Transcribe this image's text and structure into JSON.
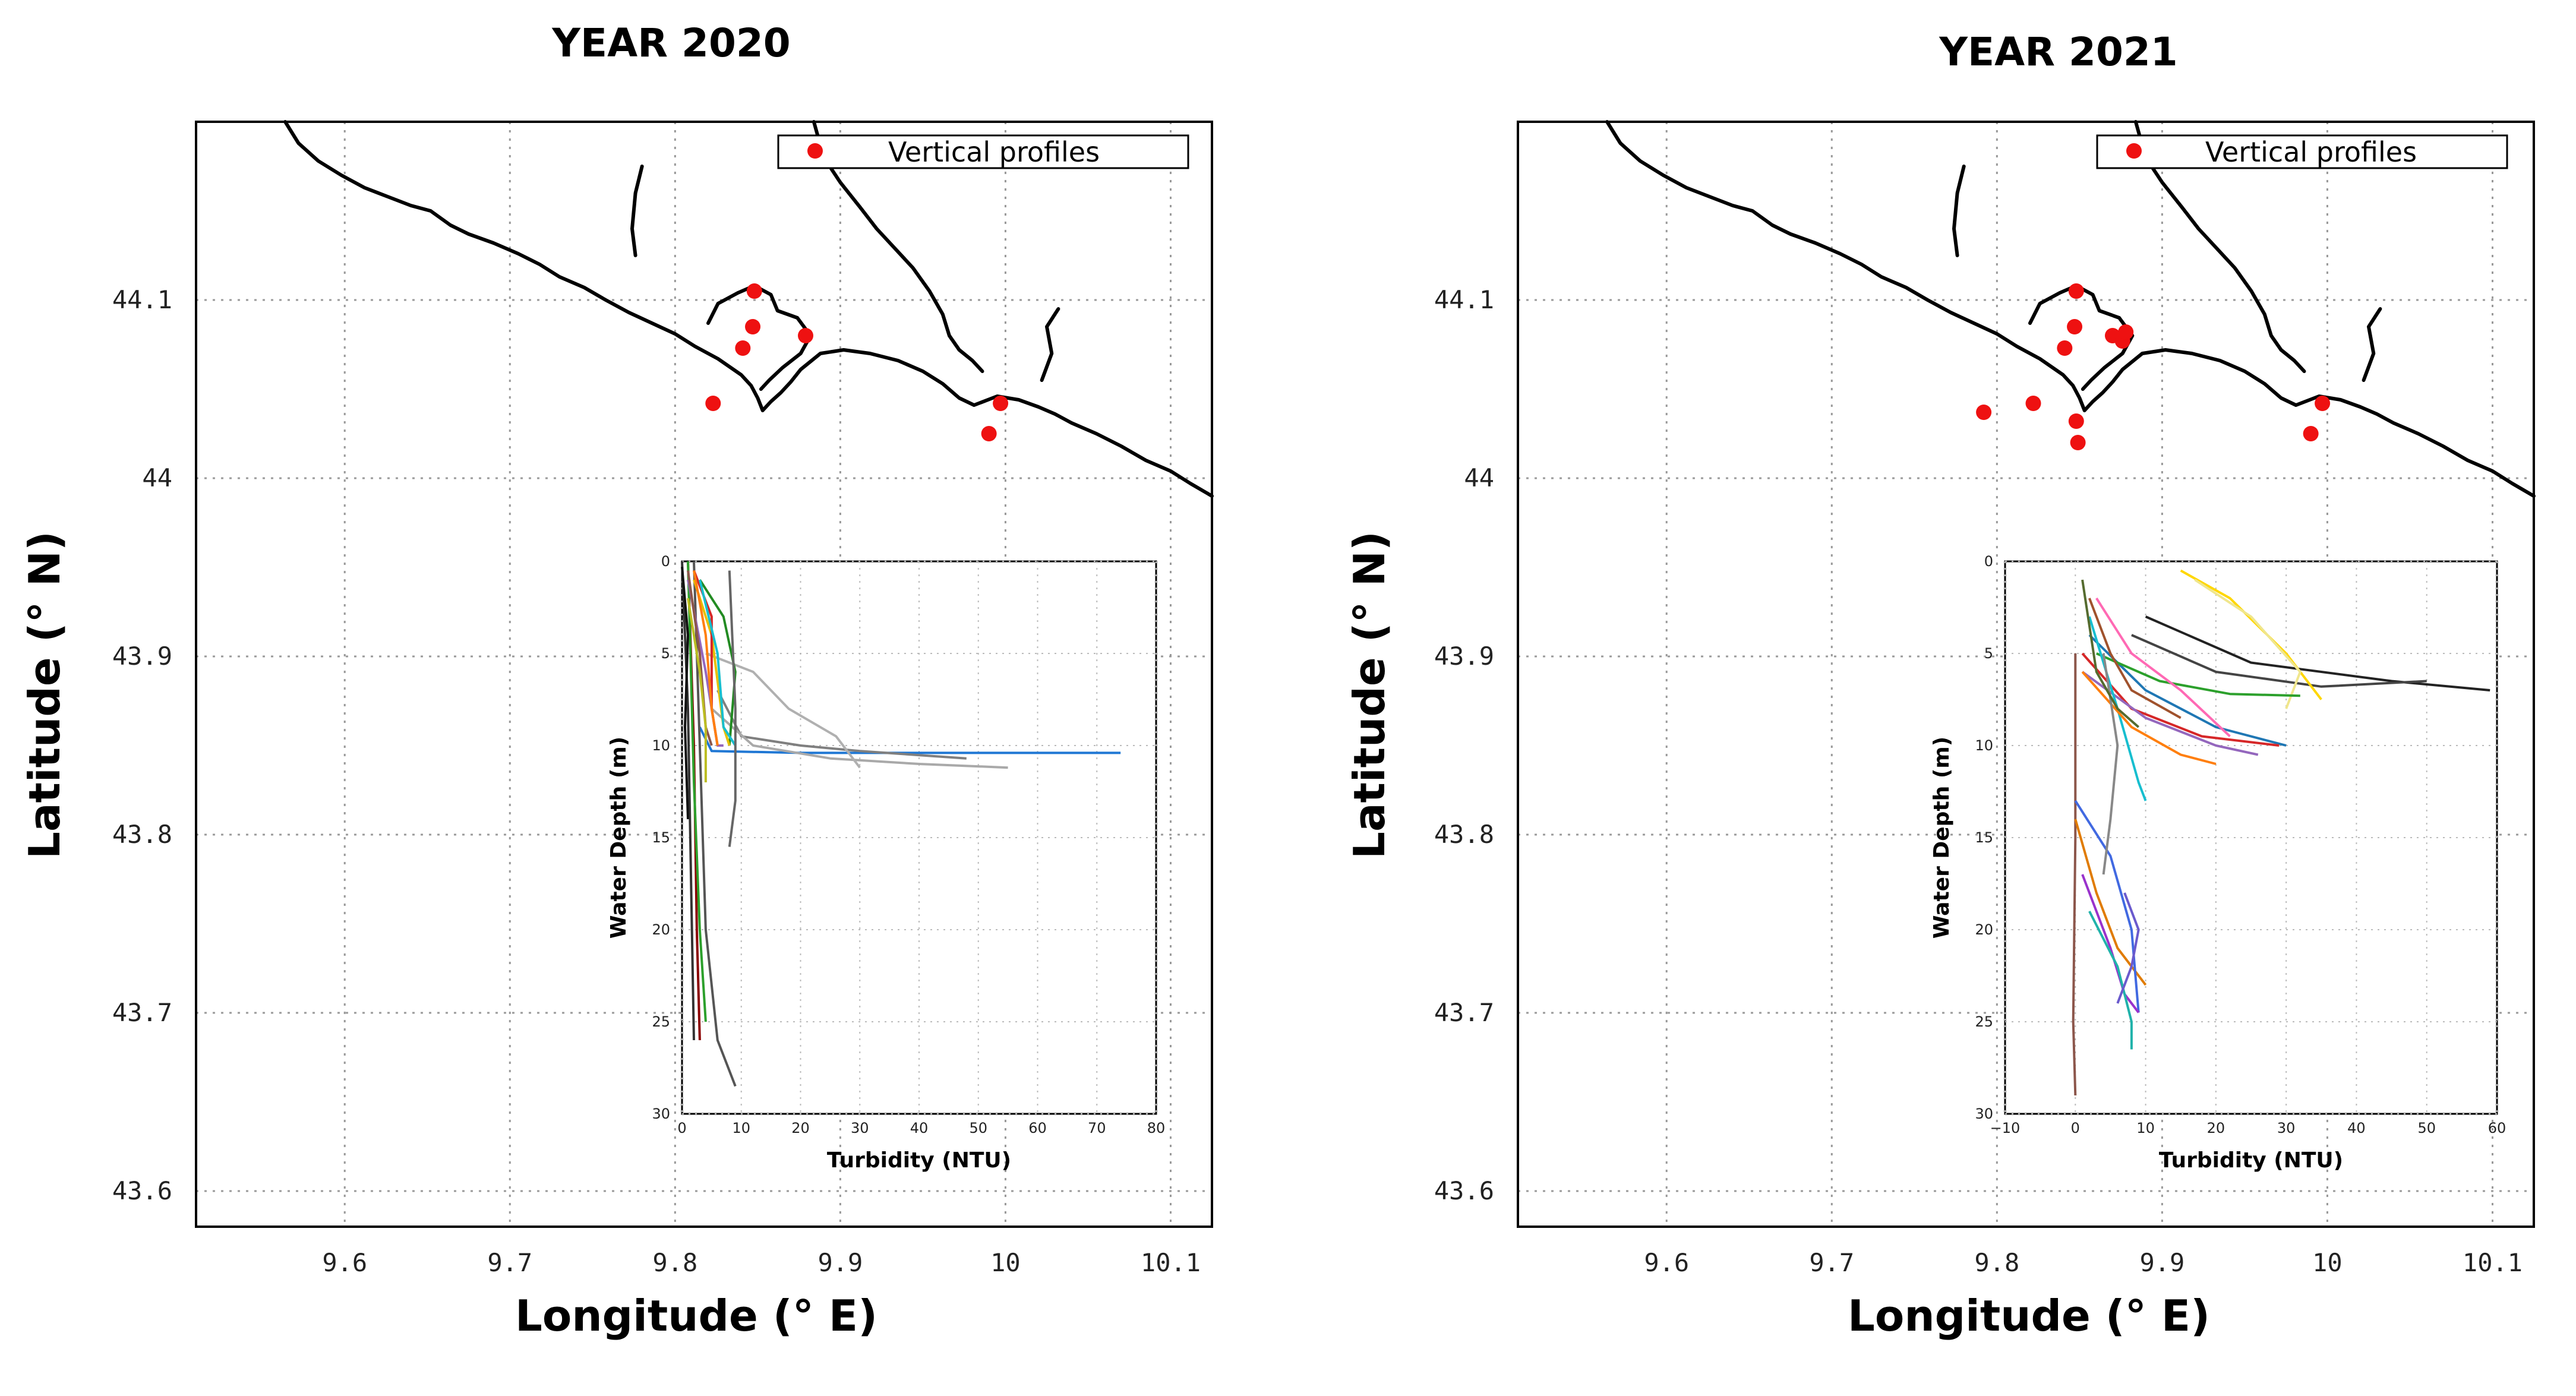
{
  "chart_data": [
    {
      "type": "scatter",
      "title": "YEAR 2020",
      "xlabel": "Longitude (° E)",
      "ylabel": "Latitude (° N)",
      "xlim": [
        9.51,
        10.125
      ],
      "ylim": [
        43.58,
        44.2
      ],
      "xticks": [
        "9.6",
        "9.7",
        "9.8",
        "9.9",
        "10",
        "10.1"
      ],
      "yticks": [
        "43.6",
        "43.7",
        "43.8",
        "43.9",
        "44",
        "44.1"
      ],
      "grid": true,
      "legend": {
        "label": "Vertical profiles",
        "position": "top-right"
      },
      "points": [
        {
          "x": 9.848,
          "y": 44.105
        },
        {
          "x": 9.847,
          "y": 44.085
        },
        {
          "x": 9.841,
          "y": 44.073
        },
        {
          "x": 9.879,
          "y": 44.08
        },
        {
          "x": 9.823,
          "y": 44.042
        },
        {
          "x": 9.997,
          "y": 44.042
        },
        {
          "x": 9.99,
          "y": 44.025
        }
      ],
      "inset": {
        "type": "line",
        "xlabel": "Turbidity (NTU)",
        "ylabel": "Water Depth (m)",
        "xlim": [
          0,
          80
        ],
        "ylim": [
          30,
          0
        ],
        "xticks": [
          "0",
          "10",
          "20",
          "30",
          "40",
          "50",
          "60",
          "70",
          "80"
        ],
        "yticks": [
          "0",
          "5",
          "10",
          "15",
          "20",
          "25",
          "30"
        ],
        "grid": true,
        "series": [
          {
            "color": "#1f77d4",
            "points": [
              [
                3,
                9
              ],
              [
                5,
                10.3
              ],
              [
                20,
                10.4
              ],
              [
                50,
                10.4
              ],
              [
                74,
                10.4
              ]
            ]
          },
          {
            "color": "#7f7f7f",
            "points": [
              [
                6,
                7
              ],
              [
                10,
                9.5
              ],
              [
                20,
                10
              ],
              [
                30,
                10.3
              ],
              [
                48,
                10.7
              ]
            ]
          },
          {
            "color": "#a9a9a9",
            "points": [
              [
                5,
                8
              ],
              [
                12,
                10
              ],
              [
                25,
                10.7
              ],
              [
                40,
                11
              ],
              [
                55,
                11.2
              ]
            ]
          },
          {
            "color": "#b0b0b0",
            "points": [
              [
                4,
                5
              ],
              [
                12,
                6
              ],
              [
                18,
                8
              ],
              [
                26,
                9.5
              ],
              [
                30,
                11.2
              ]
            ]
          },
          {
            "color": "#555555",
            "points": [
              [
                2,
                0
              ],
              [
                3,
                10
              ],
              [
                4,
                20
              ],
              [
                6,
                26
              ],
              [
                9,
                28.5
              ]
            ]
          },
          {
            "color": "#333333",
            "points": [
              [
                0,
                0
              ],
              [
                1,
                8
              ],
              [
                1.5,
                17
              ],
              [
                2,
                26
              ]
            ]
          },
          {
            "color": "#8b0000",
            "points": [
              [
                1,
                0
              ],
              [
                2,
                10
              ],
              [
                2.5,
                20
              ],
              [
                3,
                26
              ]
            ]
          },
          {
            "color": "#2ca02c",
            "points": [
              [
                1,
                0
              ],
              [
                2,
                12
              ],
              [
                3,
                20
              ],
              [
                4,
                25
              ]
            ]
          },
          {
            "color": "#228b22",
            "points": [
              [
                3,
                1
              ],
              [
                7,
                3
              ],
              [
                9,
                6
              ],
              [
                8,
                10
              ]
            ]
          },
          {
            "color": "#e6c000",
            "points": [
              [
                2,
                1
              ],
              [
                5,
                4
              ],
              [
                7,
                9
              ],
              [
                8,
                10
              ]
            ]
          },
          {
            "color": "#9467bd",
            "points": [
              [
                1,
                1
              ],
              [
                4,
                6
              ],
              [
                6,
                10
              ],
              [
                7,
                10
              ]
            ]
          },
          {
            "color": "#d62728",
            "points": [
              [
                2,
                0.5
              ],
              [
                5,
                3
              ],
              [
                5,
                8
              ],
              [
                6,
                10
              ]
            ]
          },
          {
            "color": "#17becf",
            "points": [
              [
                3,
                1
              ],
              [
                6,
                5
              ],
              [
                7,
                9
              ],
              [
                9,
                10
              ]
            ]
          },
          {
            "color": "#8c564b",
            "points": [
              [
                1,
                0.5
              ],
              [
                3,
                5
              ],
              [
                4,
                9
              ],
              [
                5,
                10
              ]
            ]
          },
          {
            "color": "#666666",
            "points": [
              [
                8,
                0.5
              ],
              [
                9,
                8
              ],
              [
                9,
                13
              ],
              [
                8,
                15.5
              ]
            ]
          },
          {
            "color": "#ff7f0e",
            "points": [
              [
                2,
                0.5
              ],
              [
                4,
                4
              ],
              [
                5,
                8
              ],
              [
                6,
                10
              ]
            ]
          },
          {
            "color": "#111111",
            "points": [
              [
                0,
                0.3
              ],
              [
                1,
                4
              ],
              [
                0.5,
                9
              ],
              [
                1,
                14
              ]
            ]
          },
          {
            "color": "#bcbd22",
            "points": [
              [
                1,
                2
              ],
              [
                3,
                6
              ],
              [
                4,
                9
              ],
              [
                4,
                12
              ]
            ]
          }
        ]
      }
    },
    {
      "type": "scatter",
      "title": "YEAR 2021",
      "xlabel": "Longitude (° E)",
      "ylabel": "Latitude (° N)",
      "xlim": [
        9.51,
        10.125
      ],
      "ylim": [
        43.58,
        44.2
      ],
      "xticks": [
        "9.6",
        "9.7",
        "9.8",
        "9.9",
        "10",
        "10.1"
      ],
      "yticks": [
        "43.6",
        "43.7",
        "43.8",
        "43.9",
        "44",
        "44.1"
      ],
      "grid": true,
      "legend": {
        "label": "Vertical profiles",
        "position": "top-right"
      },
      "points": [
        {
          "x": 9.848,
          "y": 44.105
        },
        {
          "x": 9.847,
          "y": 44.085
        },
        {
          "x": 9.841,
          "y": 44.073
        },
        {
          "x": 9.87,
          "y": 44.08
        },
        {
          "x": 9.876,
          "y": 44.077
        },
        {
          "x": 9.878,
          "y": 44.082
        },
        {
          "x": 9.792,
          "y": 44.037
        },
        {
          "x": 9.822,
          "y": 44.042
        },
        {
          "x": 9.848,
          "y": 44.032
        },
        {
          "x": 9.849,
          "y": 44.02
        },
        {
          "x": 9.997,
          "y": 44.042
        },
        {
          "x": 9.99,
          "y": 44.025
        }
      ],
      "inset": {
        "type": "line",
        "xlabel": "Turbidity (NTU)",
        "ylabel": "Water Depth (m)",
        "xlim": [
          -10,
          60
        ],
        "ylim": [
          30,
          0
        ],
        "xticks": [
          "−10",
          "0",
          "10",
          "20",
          "30",
          "40",
          "50",
          "60"
        ],
        "yticks": [
          "0",
          "5",
          "10",
          "15",
          "20",
          "25",
          "30"
        ],
        "grid": true,
        "series": [
          {
            "color": "#222222",
            "points": [
              [
                10,
                3
              ],
              [
                25,
                5.5
              ],
              [
                45,
                6.5
              ],
              [
                59,
                7
              ]
            ]
          },
          {
            "color": "#444444",
            "points": [
              [
                8,
                4
              ],
              [
                20,
                6
              ],
              [
                35,
                6.8
              ],
              [
                50,
                6.5
              ]
            ]
          },
          {
            "color": "#ffd700",
            "points": [
              [
                15,
                0.5
              ],
              [
                22,
                2
              ],
              [
                30,
                5
              ],
              [
                35,
                7.5
              ]
            ]
          },
          {
            "color": "#f0e68c",
            "points": [
              [
                17,
                1
              ],
              [
                25,
                3
              ],
              [
                32,
                6
              ],
              [
                30,
                8
              ]
            ]
          },
          {
            "color": "#1f77b4",
            "points": [
              [
                2,
                4
              ],
              [
                10,
                7
              ],
              [
                20,
                9
              ],
              [
                30,
                10
              ]
            ]
          },
          {
            "color": "#d62728",
            "points": [
              [
                1,
                5
              ],
              [
                8,
                8
              ],
              [
                18,
                9.5
              ],
              [
                29,
                10
              ]
            ]
          },
          {
            "color": "#9467bd",
            "points": [
              [
                1,
                6
              ],
              [
                10,
                8.5
              ],
              [
                20,
                10
              ],
              [
                26,
                10.5
              ]
            ]
          },
          {
            "color": "#2ca02c",
            "points": [
              [
                3,
                5
              ],
              [
                12,
                6.5
              ],
              [
                22,
                7.2
              ],
              [
                32,
                7.3
              ]
            ]
          },
          {
            "color": "#17becf",
            "points": [
              [
                2,
                3
              ],
              [
                6,
                8
              ],
              [
                9,
                12
              ],
              [
                10,
                13
              ]
            ]
          },
          {
            "color": "#ff7f0e",
            "points": [
              [
                1,
                6
              ],
              [
                8,
                9
              ],
              [
                15,
                10.5
              ],
              [
                20,
                11
              ]
            ]
          },
          {
            "color": "#8c564b",
            "points": [
              [
                0,
                5
              ],
              [
                0,
                15
              ],
              [
                -0.3,
                25
              ],
              [
                0,
                29
              ]
            ]
          },
          {
            "color": "#e07b00",
            "points": [
              [
                0,
                14
              ],
              [
                3,
                18
              ],
              [
                6,
                21
              ],
              [
                10,
                23
              ]
            ]
          },
          {
            "color": "#4169e1",
            "points": [
              [
                0,
                13
              ],
              [
                5,
                16
              ],
              [
                8,
                20
              ],
              [
                9,
                24.5
              ]
            ]
          },
          {
            "color": "#9932cc",
            "points": [
              [
                1,
                17
              ],
              [
                5,
                21
              ],
              [
                7,
                23.5
              ],
              [
                9,
                24.5
              ]
            ]
          },
          {
            "color": "#20b2aa",
            "points": [
              [
                2,
                19
              ],
              [
                6,
                22
              ],
              [
                8,
                25
              ],
              [
                8,
                26.5
              ]
            ]
          },
          {
            "color": "#888888",
            "points": [
              [
                4,
                5
              ],
              [
                6,
                10
              ],
              [
                5,
                14
              ],
              [
                4,
                17
              ]
            ]
          },
          {
            "color": "#a0522d",
            "points": [
              [
                2,
                2
              ],
              [
                5,
                5
              ],
              [
                8,
                7
              ],
              [
                15,
                8.5
              ]
            ]
          },
          {
            "color": "#ff69b4",
            "points": [
              [
                3,
                2
              ],
              [
                8,
                5
              ],
              [
                15,
                7
              ],
              [
                22,
                9.5
              ]
            ]
          },
          {
            "color": "#556b2f",
            "points": [
              [
                1,
                1
              ],
              [
                3,
                6
              ],
              [
                6,
                8
              ],
              [
                9,
                9
              ]
            ]
          },
          {
            "color": "#6a5acd",
            "points": [
              [
                7,
                18
              ],
              [
                9,
                20
              ],
              [
                8,
                22
              ],
              [
                6,
                24
              ]
            ]
          }
        ]
      }
    }
  ]
}
